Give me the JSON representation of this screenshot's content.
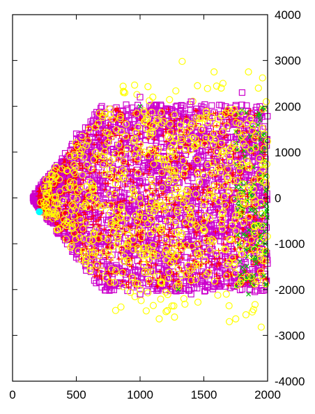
{
  "chart_data": {
    "type": "scatter",
    "title": "",
    "xlabel": "",
    "ylabel": "",
    "xlim": [
      0,
      2000
    ],
    "ylim": [
      -4000,
      4000
    ],
    "y_axis_side": "right",
    "grid": false,
    "legend": "none",
    "x_ticks": [
      0,
      500,
      1000,
      1500,
      2000
    ],
    "y_ticks": [
      -4000,
      -3000,
      -2000,
      -1000,
      0,
      1000,
      2000,
      3000,
      4000
    ],
    "x_tick_labels": [
      "0",
      "500",
      "1000",
      "1500",
      "2000"
    ],
    "y_tick_labels": [
      "-4000",
      "-3000",
      "-2000",
      "-1000",
      "0",
      "1000",
      "2000",
      "3000",
      "4000"
    ],
    "series": [
      {
        "marker": "plus",
        "color": "#ff0000",
        "points": [
          [
            600,
            -200
          ],
          [
            800,
            500
          ],
          [
            1000,
            -800
          ],
          [
            1200,
            1500
          ],
          [
            1400,
            -1500
          ],
          [
            1600,
            300
          ],
          [
            1800,
            -300
          ],
          [
            1900,
            1800
          ],
          [
            700,
            1200
          ],
          [
            1100,
            100
          ]
        ]
      },
      {
        "marker": "cross",
        "color": "#00cc00",
        "points": [
          [
            1950,
            1000
          ],
          [
            1980,
            -1000
          ],
          [
            1970,
            -1700
          ],
          [
            1940,
            1700
          ],
          [
            1990,
            200
          ],
          [
            1000,
            2000
          ],
          [
            1300,
            -2000
          ],
          [
            1850,
            -2100
          ]
        ]
      },
      {
        "marker": "square",
        "color": "#cc00cc",
        "points": [
          [
            170,
            -50
          ],
          [
            250,
            250
          ],
          [
            400,
            800
          ],
          [
            500,
            1400
          ],
          [
            700,
            2000
          ],
          [
            1000,
            2200
          ],
          [
            1400,
            2100
          ],
          [
            1800,
            2300
          ],
          [
            300,
            -500
          ],
          [
            500,
            -1300
          ],
          [
            700,
            -1950
          ],
          [
            1000,
            -2100
          ],
          [
            1400,
            -2100
          ],
          [
            1900,
            -2050
          ],
          [
            800,
            0
          ],
          [
            1200,
            -500
          ],
          [
            1600,
            800
          ]
        ]
      },
      {
        "marker": "circle",
        "color": "#ffff00",
        "points": [
          [
            220,
            -100
          ],
          [
            280,
            -300
          ],
          [
            350,
            -700
          ],
          [
            420,
            -900
          ],
          [
            1330,
            2980
          ],
          [
            1580,
            2750
          ],
          [
            1850,
            2750
          ],
          [
            1960,
            2620
          ],
          [
            1650,
            2500
          ],
          [
            1450,
            2450
          ],
          [
            1100,
            2200
          ],
          [
            870,
            2300
          ],
          [
            1270,
            -2600
          ],
          [
            1150,
            -2640
          ],
          [
            850,
            -2380
          ],
          [
            1700,
            -2700
          ],
          [
            1750,
            -2640
          ],
          [
            1950,
            -2820
          ],
          [
            1830,
            -2550
          ],
          [
            1000,
            1000
          ],
          [
            1200,
            -1200
          ],
          [
            1500,
            500
          ],
          [
            800,
            -600
          ],
          [
            1700,
            -1400
          ],
          [
            1900,
            1300
          ],
          [
            600,
            1500
          ],
          [
            1300,
            0
          ],
          [
            1600,
            1600
          ],
          [
            1400,
            -1800
          ],
          [
            1000,
            -2000
          ]
        ]
      },
      {
        "marker": "filled-circle",
        "color": "#00ffff",
        "points": [
          [
            210,
            -300
          ]
        ]
      }
    ]
  }
}
